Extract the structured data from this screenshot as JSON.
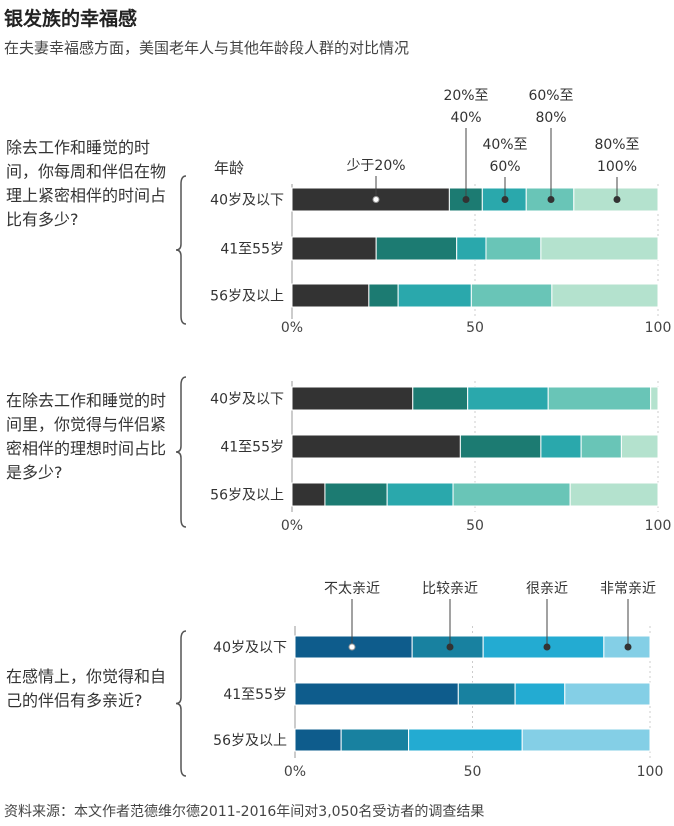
{
  "title": "银发族的幸福感",
  "subtitle": "在夫妻幸福感方面，美国老年人与其他年龄段人群的对比情况",
  "source": "资料来源：本文作者范德维尔德2011-2016年间对3,050名受访者的调查结果",
  "colors": {
    "palette_a": [
      "#333333",
      "#1c7b72",
      "#2aa8ac",
      "#69c5b7",
      "#b4e2ce"
    ],
    "palette_b": [
      "#0e5c8c",
      "#1881a0",
      "#23abd2",
      "#84cfe6"
    ],
    "axis": "#999999",
    "grid": "#cccccc"
  },
  "chart_data": [
    {
      "type": "bar",
      "orientation": "horizontal",
      "stacked": true,
      "question": "除去工作和睡觉的时间，你每周和伴侣在物理上紧密相伴的时间占比有多少?",
      "y_header": "年龄",
      "categories": [
        "40岁及以下",
        "41至55岁",
        "56岁及以上"
      ],
      "legend_labels": [
        "少于20%",
        "20%至40%",
        "40%至60%",
        "60%至80%",
        "80%至100%"
      ],
      "series": [
        {
          "name": "少于20%",
          "values": [
            43,
            23,
            21
          ]
        },
        {
          "name": "20%至40%",
          "values": [
            9,
            22,
            8
          ]
        },
        {
          "name": "40%至60%",
          "values": [
            12,
            8,
            20
          ]
        },
        {
          "name": "60%至80%",
          "values": [
            13,
            15,
            22
          ]
        },
        {
          "name": "80%至100%",
          "values": [
            23,
            32,
            29
          ]
        }
      ],
      "xlim": [
        0,
        100
      ],
      "x_ticks": [
        "0%",
        "50",
        "100"
      ],
      "grid": true
    },
    {
      "type": "bar",
      "orientation": "horizontal",
      "stacked": true,
      "question": "在除去工作和睡觉的时间里，你觉得与伴侣紧密相伴的理想时间占比是多少?",
      "categories": [
        "40岁及以下",
        "41至55岁",
        "56岁及以上"
      ],
      "series": [
        {
          "name": "少于20%",
          "values": [
            33,
            46,
            9
          ]
        },
        {
          "name": "20%至40%",
          "values": [
            15,
            22,
            17
          ]
        },
        {
          "name": "40%至60%",
          "values": [
            22,
            11,
            18
          ]
        },
        {
          "name": "60%至80%",
          "values": [
            28,
            11,
            32
          ]
        },
        {
          "name": "80%至100%",
          "values": [
            2,
            10,
            24
          ]
        }
      ],
      "xlim": [
        0,
        100
      ],
      "x_ticks": [
        "0%",
        "50",
        "100"
      ],
      "grid": true
    },
    {
      "type": "bar",
      "orientation": "horizontal",
      "stacked": true,
      "question": "在感情上，你觉得和自己的伴侣有多亲近?",
      "categories": [
        "40岁及以下",
        "41至55岁",
        "56岁及以上"
      ],
      "legend_labels": [
        "不太亲近",
        "比较亲近",
        "很亲近",
        "非常亲近"
      ],
      "series": [
        {
          "name": "不太亲近",
          "values": [
            33,
            46,
            13
          ]
        },
        {
          "name": "比较亲近",
          "values": [
            20,
            16,
            19
          ]
        },
        {
          "name": "很亲近",
          "values": [
            34,
            14,
            32
          ]
        },
        {
          "name": "非常亲近",
          "values": [
            13,
            24,
            36
          ]
        }
      ],
      "xlim": [
        0,
        100
      ],
      "x_ticks": [
        "0%",
        "50",
        "100"
      ],
      "grid": true
    }
  ]
}
